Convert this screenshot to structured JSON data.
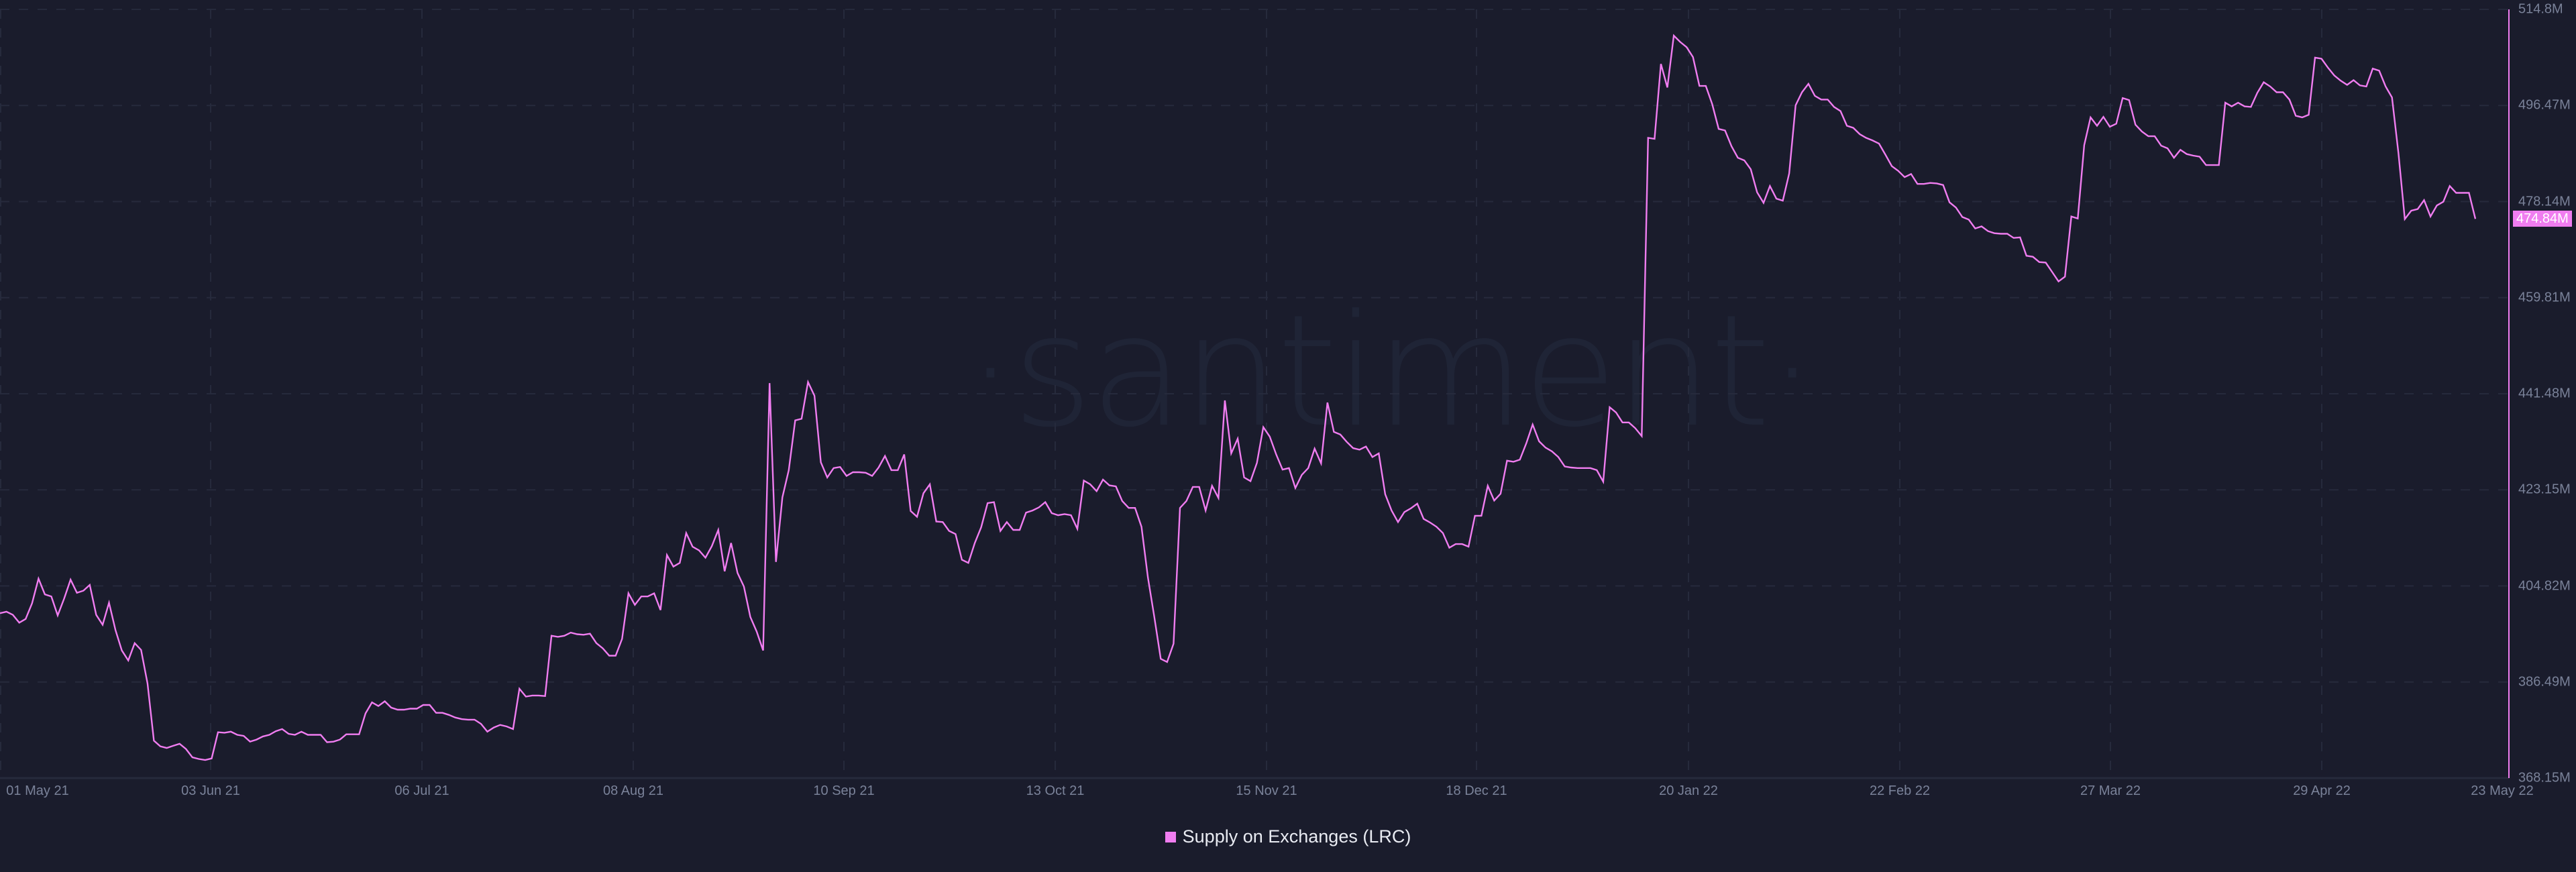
{
  "chart_data": {
    "type": "line",
    "title": "",
    "xlabel": "",
    "ylabel": "",
    "watermark": "·santiment·",
    "x_start": "01 May 21",
    "x_end": "23 May 22",
    "x_tick_labels": [
      "01 May 21",
      "03 Jun 21",
      "06 Jul 21",
      "08 Aug 21",
      "10 Sep 21",
      "13 Oct 21",
      "15 Nov 21",
      "18 Dec 21",
      "20 Jan 22",
      "22 Feb 22",
      "27 Mar 22",
      "29 Apr 22",
      "23 May 22"
    ],
    "y_tick_labels": [
      "514.8M",
      "496.47M",
      "478.14M",
      "459.81M",
      "441.48M",
      "423.15M",
      "404.82M",
      "386.49M",
      "368.15M"
    ],
    "ylim": [
      368.15,
      514.8
    ],
    "y_unit": "M",
    "grid": true,
    "legend_position": "bottom-center",
    "current_value_label": "474.84M",
    "series": [
      {
        "name": "Supply on Exchanges (LRC)",
        "color": "#f07df0",
        "frequency": "daily",
        "values": [
          399.6,
          399.9,
          399.3,
          397.8,
          398.5,
          401.5,
          406.2,
          403.2,
          402.8,
          399.2,
          402.4,
          406.0,
          403.5,
          403.9,
          405.0,
          399.3,
          397.4,
          401.6,
          396.4,
          392.5,
          390.6,
          393.9,
          392.6,
          386.2,
          375.3,
          374.2,
          373.9,
          374.3,
          374.7,
          373.7,
          372.1,
          371.8,
          371.6,
          371.9,
          376.9,
          376.8,
          377.0,
          376.4,
          376.2,
          375.1,
          375.5,
          376.1,
          376.4,
          377.1,
          377.5,
          376.6,
          376.4,
          377.0,
          376.4,
          376.4,
          376.4,
          375.0,
          375.1,
          375.5,
          376.5,
          376.5,
          376.5,
          380.5,
          382.6,
          381.9,
          382.8,
          381.6,
          381.2,
          381.2,
          381.4,
          381.4,
          382.1,
          382.1,
          380.6,
          380.6,
          380.2,
          379.7,
          379.4,
          379.3,
          379.3,
          378.5,
          377.0,
          377.8,
          378.3,
          378.0,
          377.5,
          385.2,
          383.7,
          383.9,
          383.9,
          383.8,
          395.3,
          395.1,
          395.3,
          395.9,
          395.6,
          395.5,
          395.7,
          393.9,
          392.9,
          391.5,
          391.5,
          394.7,
          403.4,
          401.2,
          402.8,
          402.8,
          403.4,
          400.2,
          410.7,
          408.5,
          409.2,
          414.9,
          412.3,
          411.6,
          410.2,
          412.4,
          415.5,
          407.6,
          413.0,
          407.3,
          404.7,
          398.9,
          396.1,
          392.5,
          443.5,
          409.4,
          421.7,
          426.9,
          436.4,
          436.7,
          443.7,
          441.1,
          428.4,
          425.5,
          427.3,
          427.5,
          425.8,
          426.5,
          426.5,
          426.4,
          425.8,
          427.4,
          429.6,
          426.9,
          426.9,
          429.9,
          419.1,
          418.0,
          422.5,
          424.2,
          417.1,
          417.0,
          415.3,
          414.7,
          409.8,
          409.2,
          413.0,
          416.0,
          420.6,
          420.8,
          415.3,
          417.0,
          415.5,
          415.5,
          418.8,
          419.2,
          419.8,
          420.8,
          418.7,
          418.3,
          418.5,
          418.3,
          415.7,
          424.9,
          424.2,
          422.9,
          425.1,
          424.0,
          423.8,
          421.0,
          419.7,
          419.7,
          416.1,
          406.4,
          398.9,
          390.9,
          390.3,
          393.8,
          419.7,
          421.0,
          423.7,
          423.7,
          419.2,
          423.9,
          421.6,
          440.2,
          430.1,
          432.9,
          425.5,
          424.8,
          428.3,
          435.1,
          433.3,
          429.9,
          427.0,
          427.3,
          423.5,
          426.0,
          427.3,
          431.0,
          428.2,
          439.8,
          434.2,
          433.7,
          432.3,
          431.1,
          430.8,
          431.4,
          429.4,
          430.1,
          422.3,
          419.2,
          417.0,
          418.9,
          419.6,
          420.5,
          417.6,
          416.9,
          416.1,
          414.9,
          412.1,
          412.8,
          412.8,
          412.3,
          418.2,
          418.2,
          423.9,
          421.1,
          422.4,
          428.7,
          428.5,
          428.9,
          432.0,
          435.6,
          432.4,
          431.2,
          430.5,
          429.4,
          427.6,
          427.4,
          427.3,
          427.3,
          427.3,
          426.9,
          424.7,
          438.9,
          437.9,
          436.0,
          436.0,
          434.9,
          433.4,
          490.3,
          490.1,
          504.4,
          499.9,
          509.8,
          508.6,
          507.6,
          505.7,
          500.2,
          500.2,
          496.7,
          492.0,
          491.7,
          488.7,
          486.5,
          486.0,
          484.3,
          479.9,
          477.9,
          481.1,
          478.7,
          478.3,
          483.5,
          496.5,
          499.0,
          500.6,
          498.3,
          497.6,
          497.6,
          496.2,
          495.4,
          492.6,
          492.2,
          491.0,
          490.3,
          489.8,
          489.2,
          487.1,
          484.9,
          484.0,
          482.8,
          483.4,
          481.5,
          481.5,
          481.7,
          481.6,
          481.3,
          478.0,
          477.0,
          475.2,
          474.7,
          473.0,
          473.4,
          472.5,
          472.1,
          472.0,
          472.0,
          471.2,
          471.3,
          467.8,
          467.6,
          466.6,
          466.5,
          464.7,
          462.9,
          463.8,
          475.3,
          474.9,
          488.9,
          494.2,
          492.6,
          494.3,
          492.4,
          493.0,
          497.9,
          497.5,
          492.8,
          491.5,
          490.6,
          490.6,
          488.8,
          488.3,
          486.5,
          488.0,
          487.2,
          486.9,
          486.7,
          485.1,
          485.1,
          485.1,
          497.0,
          496.3,
          497.0,
          496.3,
          496.2,
          498.9,
          500.9,
          500.1,
          499.0,
          499.0,
          497.6,
          494.5,
          494.2,
          494.7,
          505.6,
          505.4,
          503.7,
          502.2,
          501.2,
          500.4,
          501.3,
          500.3,
          500.1,
          503.5,
          503.1,
          500.1,
          498.0,
          487.4,
          474.8,
          476.4,
          476.7,
          478.4,
          475.3,
          477.4,
          478.1,
          481.1,
          479.8,
          479.8,
          479.8,
          474.84
        ]
      }
    ]
  },
  "legend": {
    "label": "Supply on Exchanges (LRC)",
    "color": "#f07df0"
  },
  "axis": {
    "current_value": "474.84M"
  },
  "colors": {
    "background": "#1a1c2c",
    "line": "#f07df0",
    "grid": "#262a3c",
    "axis_text": "#7a8299",
    "watermark": "#1f2436"
  }
}
